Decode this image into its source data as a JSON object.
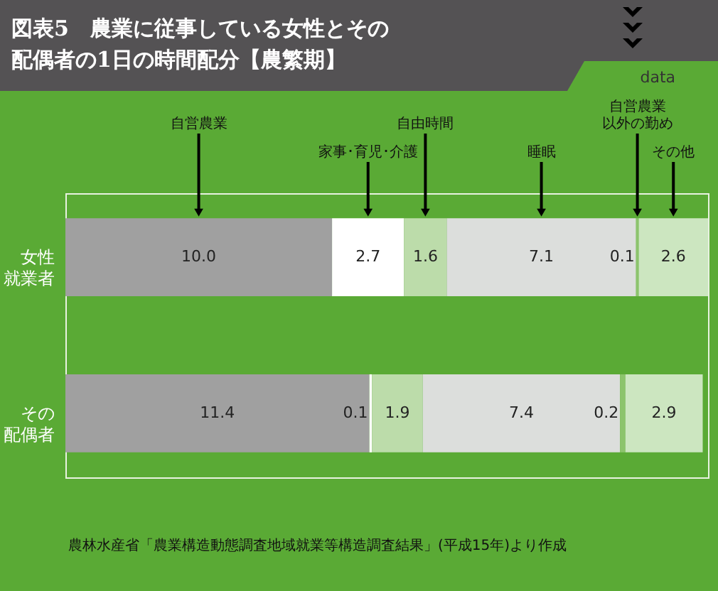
{
  "chart_data": {
    "type": "bar",
    "orientation": "horizontal",
    "stacked": true,
    "title": "図表5　農業に従事している女性とその配偶者の1日の時間配分【農繁期】",
    "categories": [
      "女性就業者",
      "その配偶者"
    ],
    "series": [
      {
        "name": "自営農業",
        "color": "#a0a0a0",
        "values": [
          10.0,
          11.4
        ],
        "value_labels": [
          "10.0",
          "11.4"
        ]
      },
      {
        "name": "家事･育児･介護",
        "color": "#ffffff",
        "values": [
          2.7,
          0.1
        ],
        "value_labels": [
          "2.7",
          "0.1"
        ]
      },
      {
        "name": "自由時間",
        "color": "#bcdcaa",
        "values": [
          1.6,
          1.9
        ],
        "value_labels": [
          "1.6",
          "1.9"
        ]
      },
      {
        "name": "睡眠",
        "color": "#dcdedc",
        "values": [
          7.1,
          7.4
        ],
        "value_labels": [
          "7.1",
          "7.4"
        ]
      },
      {
        "name": "自営農業以外の勤め",
        "color": "#8cc46c",
        "values": [
          0.1,
          0.2
        ],
        "value_labels": [
          "0.1",
          "0.2"
        ]
      },
      {
        "name": "その他",
        "color": "#cce6c0",
        "values": [
          2.6,
          2.9
        ],
        "value_labels": [
          "2.6",
          "2.9"
        ]
      }
    ],
    "xlim": [
      0,
      24.1
    ],
    "tick_labels": "y",
    "grid": false,
    "annotations": [
      "data",
      "農林水産省「農業構造動態調査地域就業等構造調査結果」(平成15年)より作成"
    ]
  }
}
